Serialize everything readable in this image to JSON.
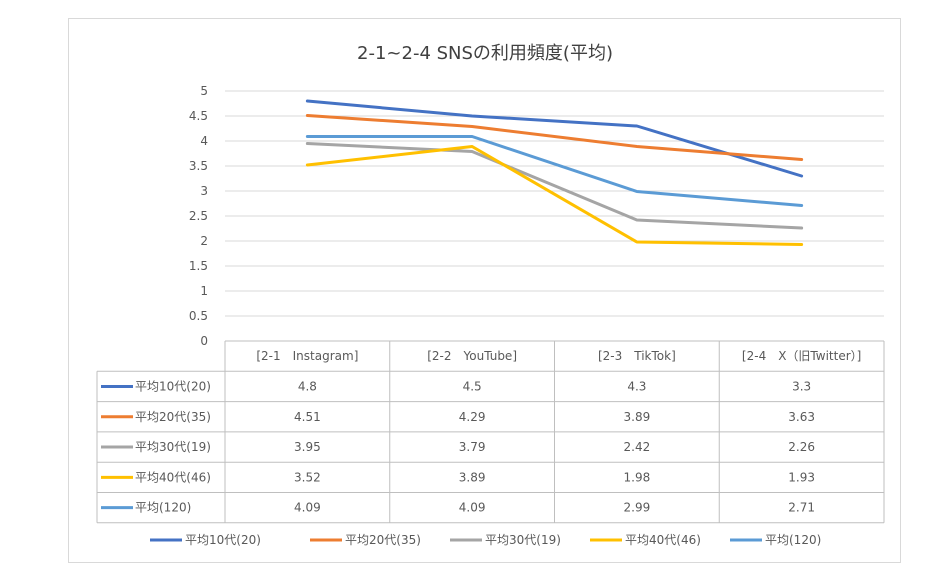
{
  "chart_data": {
    "type": "line",
    "title": "2-1~2-4 SNSの利用頻度(平均)",
    "categories": [
      "[2-1　Instagram]",
      "[2-2　YouTube]",
      "[2-3　TikTok]",
      "[2-4　X（旧Twitter）]"
    ],
    "series": [
      {
        "name": "平均10代(20)",
        "color": "#4472c4",
        "values": [
          4.8,
          4.5,
          4.3,
          3.3
        ],
        "labels": [
          "4.8",
          "4.5",
          "4.3",
          "3.3"
        ]
      },
      {
        "name": "平均20代(35)",
        "color": "#ed7d31",
        "values": [
          4.51,
          4.29,
          3.89,
          3.63
        ],
        "labels": [
          "4.51",
          "4.29",
          "3.89",
          "3.63"
        ]
      },
      {
        "name": "平均30代(19)",
        "color": "#a5a5a5",
        "values": [
          3.95,
          3.79,
          2.42,
          2.26
        ],
        "labels": [
          "3.95",
          "3.79",
          "2.42",
          "2.26"
        ]
      },
      {
        "name": "平均40代(46)",
        "color": "#ffc000",
        "values": [
          3.52,
          3.89,
          1.98,
          1.93
        ],
        "labels": [
          "3.52",
          "3.89",
          "1.98",
          "1.93"
        ]
      },
      {
        "name": "平均(120)",
        "color": "#5b9bd5",
        "values": [
          4.09,
          4.09,
          2.99,
          2.71
        ],
        "labels": [
          "4.09",
          "4.09",
          "2.99",
          "2.71"
        ]
      }
    ],
    "ylim": [
      0,
      5
    ],
    "yticks": [
      "0",
      "0.5",
      "1",
      "1.5",
      "2",
      "2.5",
      "3",
      "3.5",
      "4",
      "4.5",
      "5"
    ],
    "grid": true,
    "data_table": true,
    "legend_position": "bottom"
  }
}
